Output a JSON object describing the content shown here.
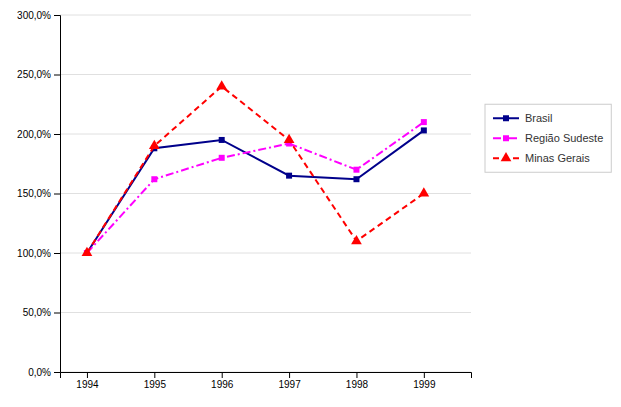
{
  "chart_data": {
    "type": "line",
    "x": [
      1994,
      1995,
      1996,
      1997,
      1998,
      1999
    ],
    "series": [
      {
        "name": "Brasil",
        "color": "#00008B",
        "marker": "square",
        "line_style": "solid",
        "values": [
          100.0,
          188.0,
          195.0,
          165.0,
          162.0,
          203.0
        ]
      },
      {
        "name": "Região Sudeste",
        "color": "#FF00FF",
        "marker": "square",
        "line_style": "dashdot",
        "values": [
          100.0,
          162.0,
          180.0,
          192.0,
          170.0,
          210.0
        ]
      },
      {
        "name": "Minas Gerais",
        "color": "#FF0000",
        "marker": "triangle",
        "line_style": "dashed",
        "values": [
          100.0,
          190.0,
          240.0,
          195.0,
          110.0,
          150.0
        ]
      }
    ],
    "xlim": [
      1993.6,
      1999.7
    ],
    "xticks": [
      1994,
      1995,
      1996,
      1997,
      1998,
      1999
    ],
    "ylim": [
      0,
      300
    ],
    "yticks": [
      {
        "value": 0,
        "label": "0,0%"
      },
      {
        "value": 50,
        "label": "50,0%"
      },
      {
        "value": 100,
        "label": "100,0%"
      },
      {
        "value": 150,
        "label": "150,0%"
      },
      {
        "value": 200,
        "label": "200,0%"
      },
      {
        "value": 250,
        "label": "250,0%"
      },
      {
        "value": 300,
        "label": "300,0%"
      }
    ],
    "grid": true,
    "legend": "right"
  }
}
